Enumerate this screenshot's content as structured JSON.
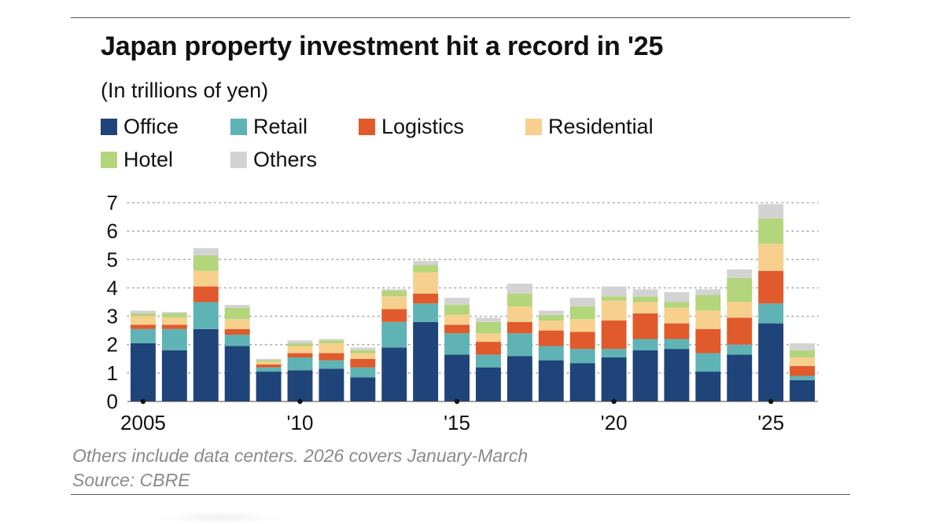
{
  "header": {
    "title": "Japan property investment hit a record in '25",
    "subtitle": "(In trillions of yen)"
  },
  "footer": {
    "note": "Others include data centers. 2026 covers January-March",
    "source": "Source: CBRE"
  },
  "colors": {
    "Office": "#1f4479",
    "Retail": "#5fb3b4",
    "Logistics": "#e05a2b",
    "Residential": "#f7d08e",
    "Hotel": "#b3d57c",
    "Others": "#d3d3d3",
    "gridline": "#aaaaaa",
    "text": "#111111",
    "footnote": "#8a8a8a"
  },
  "chart_data": {
    "type": "bar",
    "stacked": true,
    "x": [
      "2005",
      "2006",
      "2007",
      "2008",
      "2009",
      "2010",
      "2011",
      "2012",
      "2013",
      "2014",
      "2015",
      "2016",
      "2017",
      "2018",
      "2019",
      "2020",
      "2021",
      "2022",
      "2023",
      "2024",
      "2025",
      "2026"
    ],
    "x_tick_labels": [
      {
        "x": "2005",
        "label": "2005"
      },
      {
        "x": "2010",
        "label": "'10"
      },
      {
        "x": "2015",
        "label": "'15"
      },
      {
        "x": "2020",
        "label": "'20"
      },
      {
        "x": "2025",
        "label": "'25"
      }
    ],
    "y_ticks": [
      0,
      1,
      2,
      3,
      4,
      5,
      6,
      7
    ],
    "ylim": [
      0,
      7
    ],
    "grid": "horizontal-dotted",
    "legend_position": "top",
    "series": [
      {
        "name": "Office",
        "values": [
          2.05,
          1.8,
          2.55,
          1.95,
          1.05,
          1.1,
          1.15,
          0.85,
          1.9,
          2.8,
          1.65,
          1.2,
          1.6,
          1.45,
          1.35,
          1.55,
          1.8,
          1.85,
          1.05,
          1.65,
          2.75,
          0.75
        ]
      },
      {
        "name": "Retail",
        "values": [
          0.5,
          0.75,
          0.95,
          0.4,
          0.15,
          0.45,
          0.3,
          0.35,
          0.9,
          0.65,
          0.75,
          0.45,
          0.8,
          0.5,
          0.5,
          0.3,
          0.4,
          0.35,
          0.65,
          0.35,
          0.7,
          0.15
        ]
      },
      {
        "name": "Logistics",
        "values": [
          0.15,
          0.15,
          0.55,
          0.2,
          0.1,
          0.15,
          0.25,
          0.3,
          0.45,
          0.35,
          0.3,
          0.45,
          0.4,
          0.55,
          0.6,
          1.0,
          0.9,
          0.55,
          0.85,
          0.95,
          1.15,
          0.35
        ]
      },
      {
        "name": "Residential",
        "values": [
          0.3,
          0.25,
          0.55,
          0.35,
          0.1,
          0.25,
          0.35,
          0.2,
          0.45,
          0.75,
          0.35,
          0.3,
          0.55,
          0.35,
          0.45,
          0.7,
          0.4,
          0.55,
          0.65,
          0.55,
          0.95,
          0.3
        ]
      },
      {
        "name": "Hotel",
        "values": [
          0.1,
          0.15,
          0.55,
          0.4,
          0.05,
          0.1,
          0.1,
          0.1,
          0.2,
          0.25,
          0.35,
          0.4,
          0.45,
          0.2,
          0.45,
          0.15,
          0.2,
          0.2,
          0.55,
          0.85,
          0.9,
          0.25
        ]
      },
      {
        "name": "Others",
        "values": [
          0.1,
          0.05,
          0.25,
          0.1,
          0.05,
          0.1,
          0.05,
          0.1,
          0.05,
          0.15,
          0.25,
          0.15,
          0.35,
          0.15,
          0.3,
          0.35,
          0.25,
          0.35,
          0.2,
          0.3,
          0.5,
          0.25
        ]
      }
    ]
  }
}
